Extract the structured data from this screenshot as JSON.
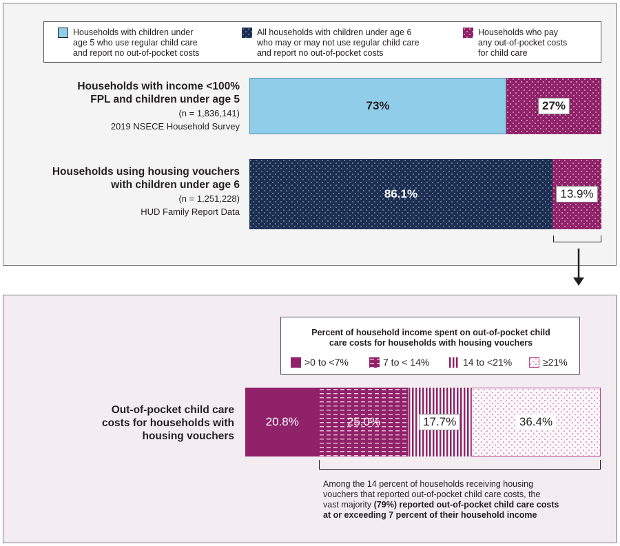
{
  "colors": {
    "light_blue": "#8fcde9",
    "navy": "#1c2f52",
    "magenta": "#8f2268",
    "magenta_light": "#b4468c",
    "pale_pink": "#f7eff5"
  },
  "legend_top": {
    "items": [
      {
        "text_lines": [
          "Households with children under",
          "age 5 who use regular child care",
          "and report no out-of-pocket costs"
        ],
        "swatch": "light-blue"
      },
      {
        "text_lines": [
          "All households with children under age 6",
          "who may or may not use regular child care",
          "and report no out-of-pocket costs"
        ],
        "swatch": "navy-dots"
      },
      {
        "text_lines": [
          "Households who pay",
          "any out-of-pocket costs",
          "for child care"
        ],
        "swatch": "magenta-dots"
      }
    ]
  },
  "rows": [
    {
      "title_lines": [
        "Households with income <100%",
        "FPL and children under age 5"
      ],
      "n": "(n = 1,836,141)",
      "source": "2019 NSECE Household Survey"
    },
    {
      "title_lines": [
        "Households using housing vouchers",
        "with children under age 6"
      ],
      "n": "(n = 1,251,228)",
      "source": "HUD Family Report Data"
    }
  ],
  "legend_bottom": {
    "title_lines": [
      "Percent of household income spent on out-of-pocket child",
      "care costs for households with housing vouchers"
    ],
    "items": [
      ">0 to <7%",
      "7 to < 14%",
      "14 to <21%",
      "≥21%"
    ]
  },
  "bottom_row": {
    "title_lines": [
      "Out-of-pocket child care",
      "costs for households with",
      "housing vouchers"
    ]
  },
  "note": {
    "line1": "Among the 14 percent of households receiving housing",
    "line2": "vouchers that reported out-of-pocket child care costs, the",
    "line3_pre": "vast majority ",
    "line3_bold": "(79%) reported out-of-pocket child care costs",
    "line4_bold": "at or exceeding 7 percent of their household income"
  },
  "chart_data": [
    {
      "type": "bar",
      "orientation": "horizontal-stacked",
      "categories": [
        "Households with income <100% FPL and children under age 5",
        "Households using housing vouchers with children under age 6"
      ],
      "series": [
        {
          "name": "Households with children under age 5 who use regular child care and report no out-of-pocket costs",
          "values": [
            73,
            null
          ]
        },
        {
          "name": "All households with children under age 6 who may or may not use regular child care and report no out-of-pocket costs",
          "values": [
            null,
            86.1
          ]
        },
        {
          "name": "Households who pay any out-of-pocket costs for child care",
          "values": [
            27,
            13.9
          ]
        }
      ],
      "data_labels": [
        [
          "73%",
          "27%"
        ],
        [
          "86.1%",
          "13.9%"
        ]
      ]
    },
    {
      "type": "bar",
      "orientation": "horizontal-stacked",
      "categories": [
        "Out-of-pocket child care costs for households with housing vouchers"
      ],
      "series": [
        {
          "name": ">0 to <7%",
          "values": [
            20.8
          ]
        },
        {
          "name": "7 to < 14%",
          "values": [
            25.0
          ]
        },
        {
          "name": "14 to <21%",
          "values": [
            17.7
          ]
        },
        {
          "name": "≥21%",
          "values": [
            36.4
          ]
        }
      ],
      "data_labels": [
        "20.8%",
        "25.0%",
        "17.7%",
        "36.4%"
      ]
    }
  ]
}
